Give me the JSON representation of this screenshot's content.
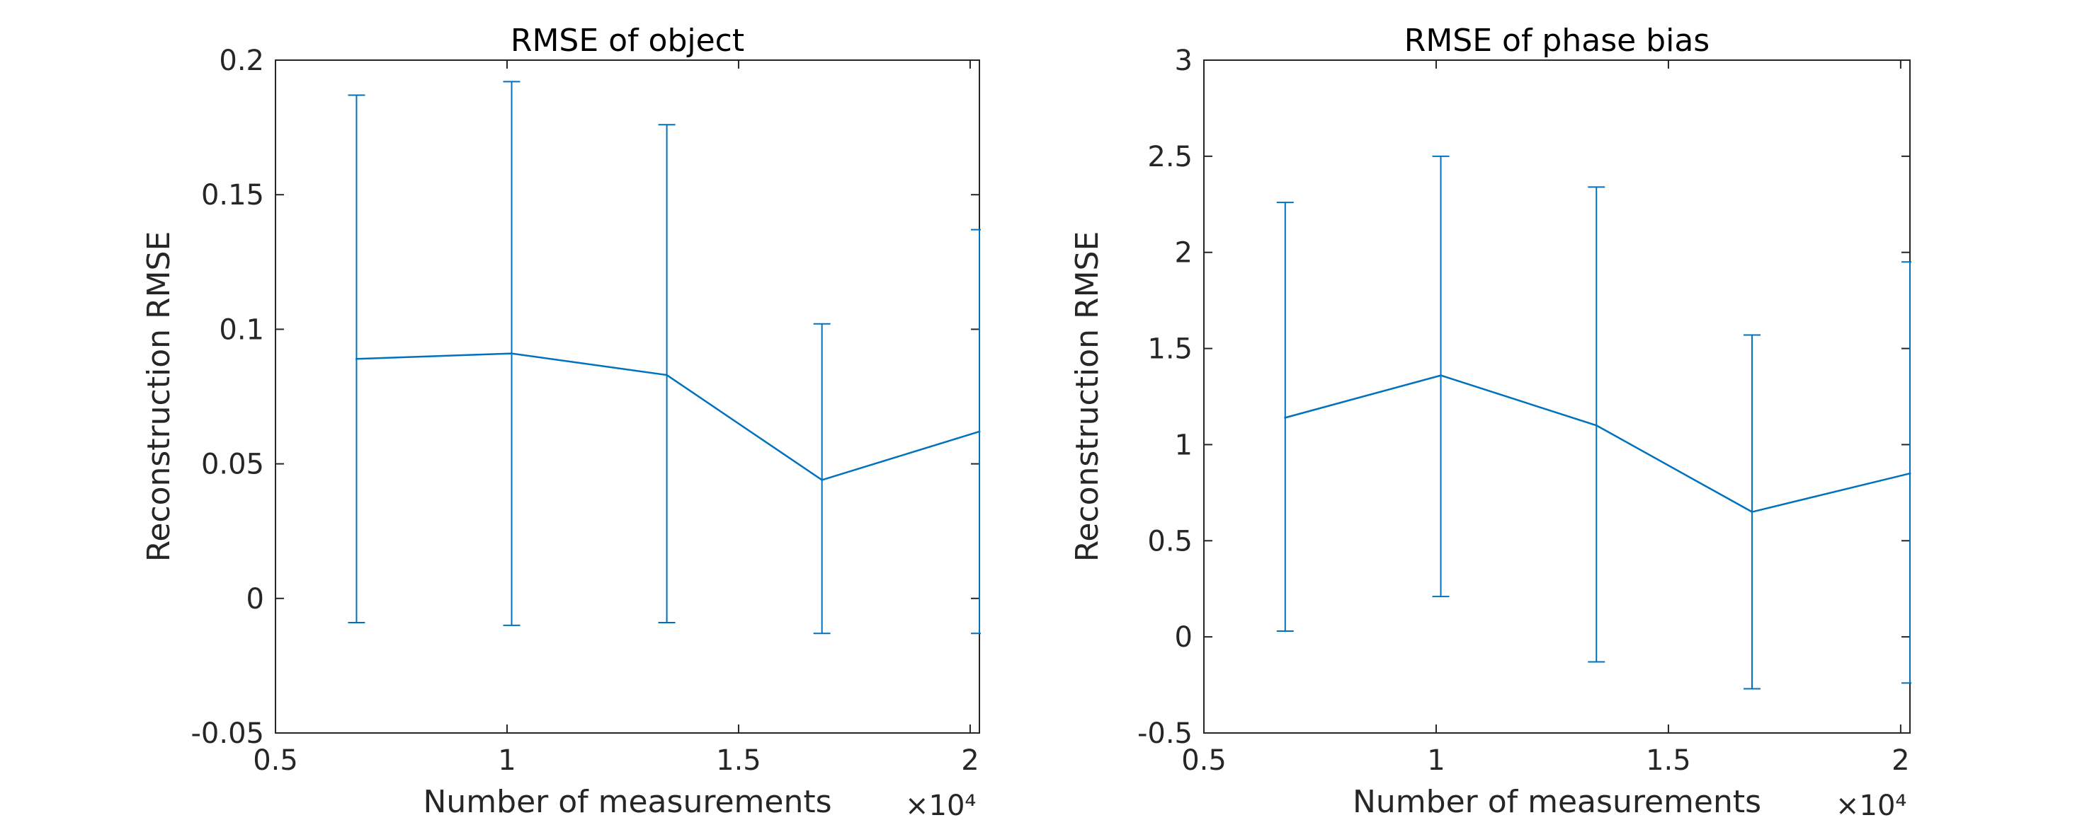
{
  "chart_data": [
    {
      "type": "line",
      "title": "RMSE of object",
      "xlabel": "Number of measurements",
      "ylabel": "Reconstruction RMSE",
      "x_exponent_label": "×10⁴",
      "xlim": [
        0.5,
        2.02
      ],
      "ylim": [
        -0.05,
        0.2
      ],
      "xticks": [
        "0.5",
        "1",
        "1.5",
        "2"
      ],
      "xtick_values": [
        0.5,
        1,
        1.5,
        2
      ],
      "yticks": [
        "-0.05",
        "0",
        "0.05",
        "0.1",
        "0.15",
        "0.2"
      ],
      "ytick_values": [
        -0.05,
        0,
        0.05,
        0.1,
        0.15,
        0.2
      ],
      "x": [
        0.675,
        1.01,
        1.345,
        1.68,
        2.02
      ],
      "y": [
        0.089,
        0.091,
        0.083,
        0.044,
        0.062
      ],
      "err_low": [
        -0.009,
        -0.01,
        -0.009,
        -0.013,
        -0.013
      ],
      "err_high": [
        0.187,
        0.192,
        0.176,
        0.102,
        0.137
      ],
      "grid": false,
      "color": "#0072BD"
    },
    {
      "type": "line",
      "title": "RMSE of phase bias",
      "xlabel": "Number of measurements",
      "ylabel": "Reconstruction RMSE",
      "x_exponent_label": "×10⁴",
      "xlim": [
        0.5,
        2.02
      ],
      "ylim": [
        -0.5,
        3
      ],
      "xticks": [
        "0.5",
        "1",
        "1.5",
        "2"
      ],
      "xtick_values": [
        0.5,
        1,
        1.5,
        2
      ],
      "yticks": [
        "-0.5",
        "0",
        "0.5",
        "1",
        "1.5",
        "2",
        "2.5",
        "3"
      ],
      "ytick_values": [
        -0.5,
        0,
        0.5,
        1,
        1.5,
        2,
        2.5,
        3
      ],
      "x": [
        0.675,
        1.01,
        1.345,
        1.68,
        2.02
      ],
      "y": [
        1.14,
        1.36,
        1.1,
        0.65,
        0.85
      ],
      "err_low": [
        0.03,
        0.21,
        -0.13,
        -0.27,
        -0.24
      ],
      "err_high": [
        2.26,
        2.5,
        2.34,
        1.57,
        1.95
      ],
      "grid": false,
      "color": "#0072BD"
    }
  ]
}
